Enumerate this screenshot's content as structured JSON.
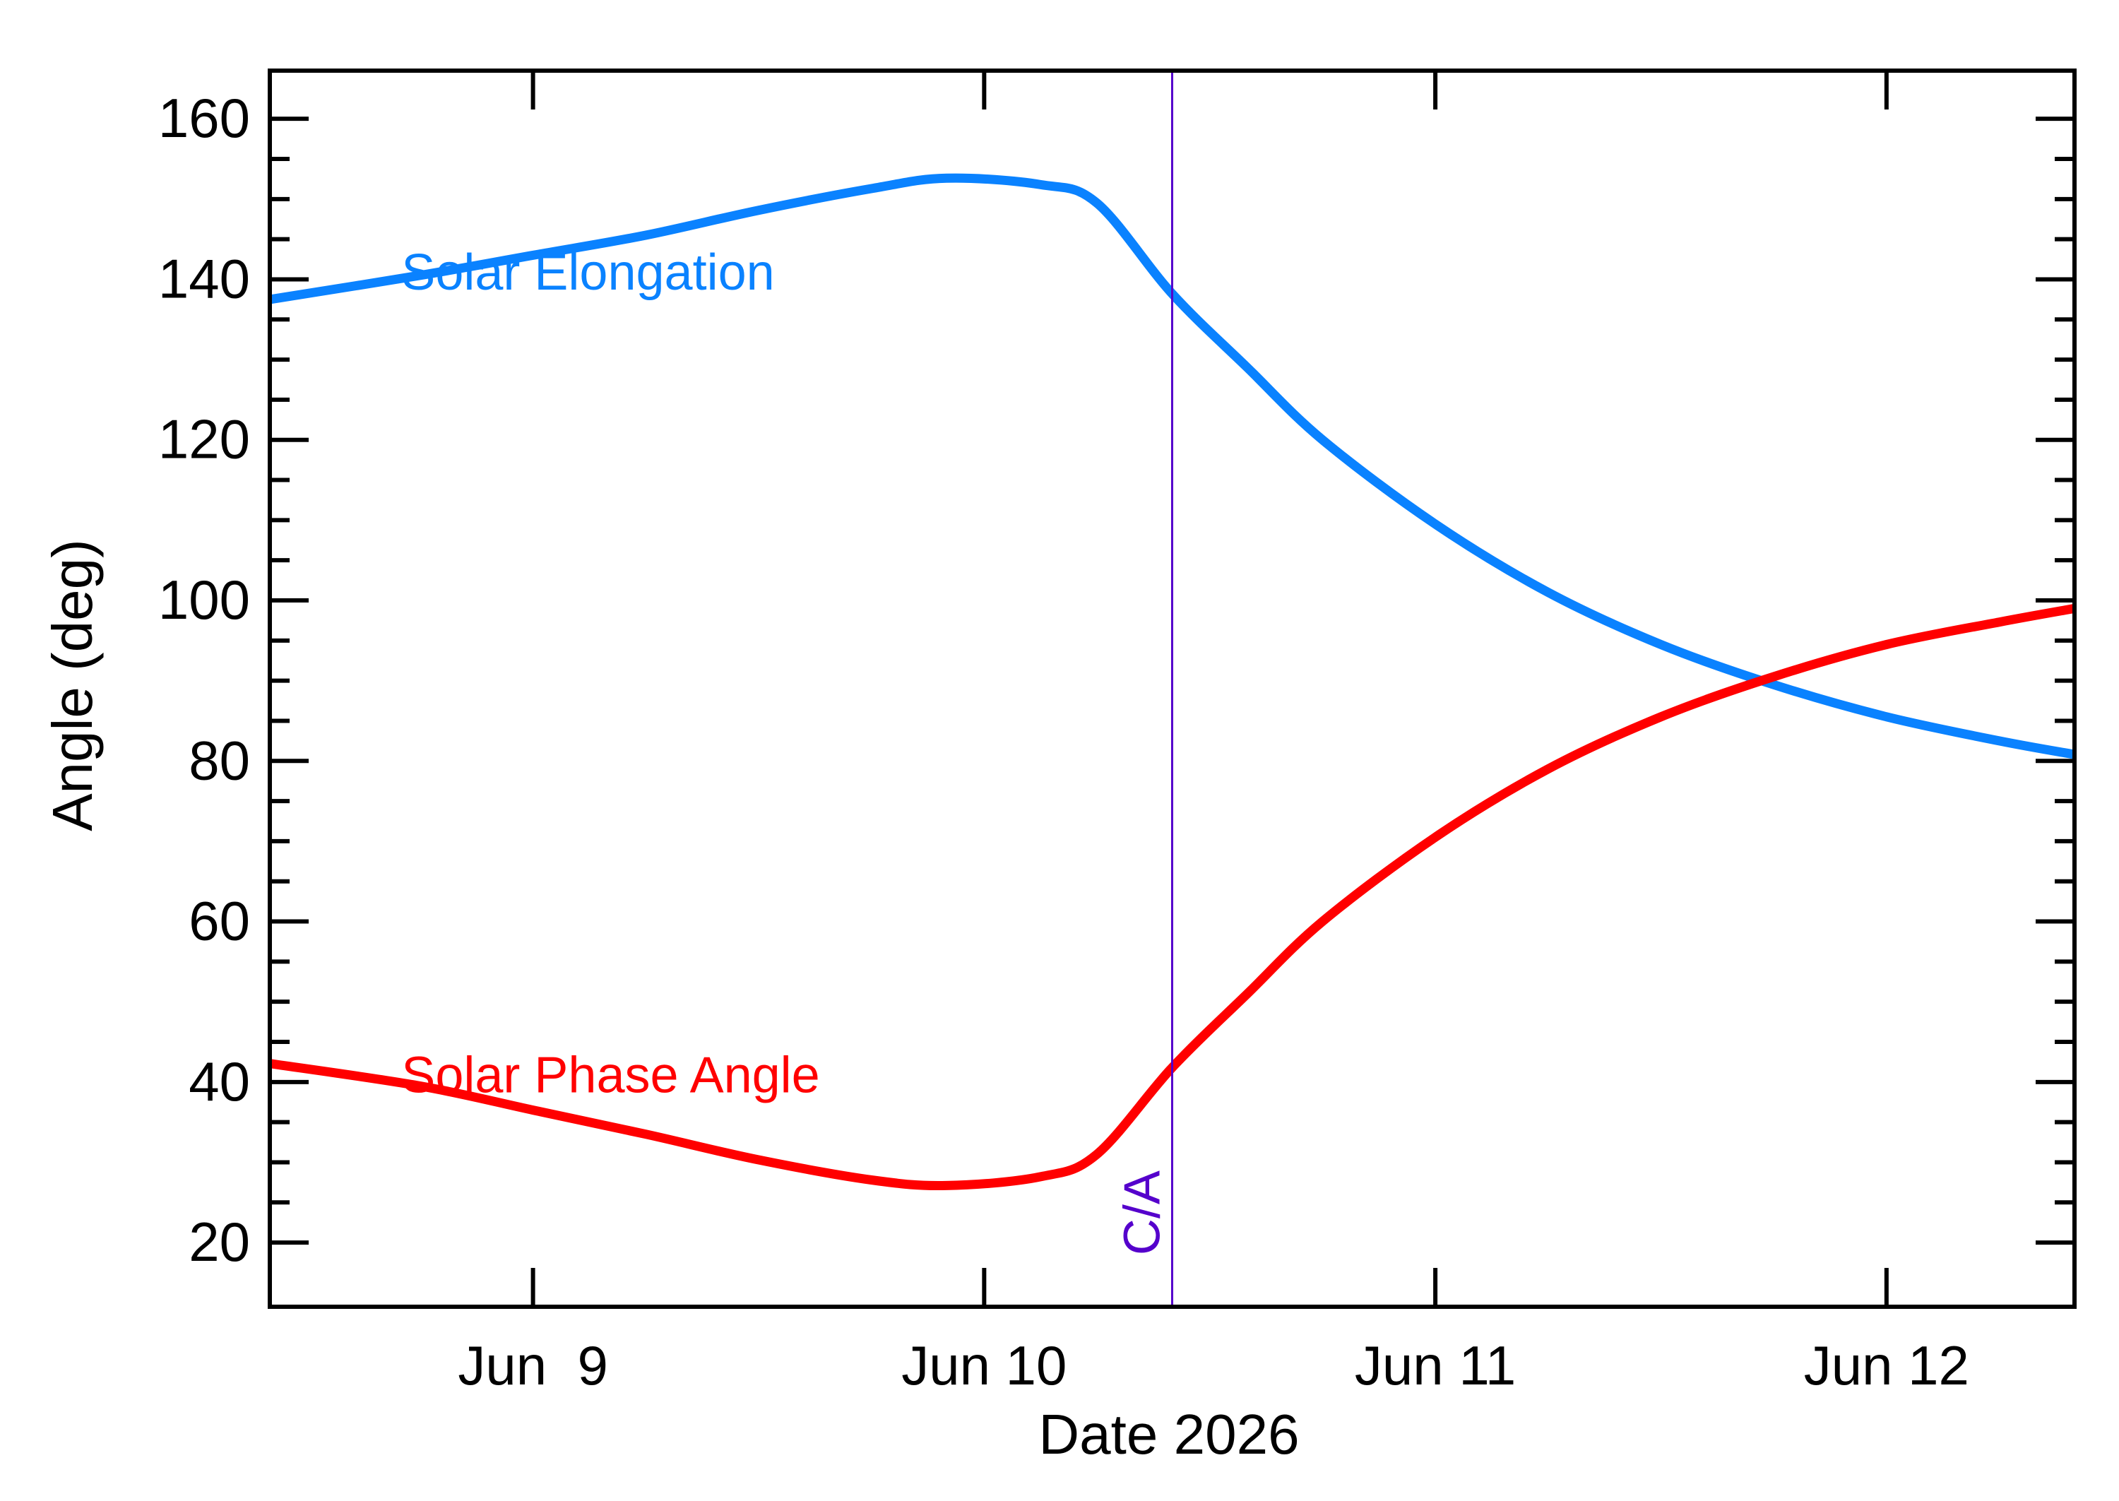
{
  "chart_data": {
    "type": "line",
    "xlabel": "Date 2026",
    "ylabel": "Angle (deg)",
    "xlim": [
      "2026-06-08T10:00",
      "2026-06-12T10:00"
    ],
    "ylim": [
      12,
      166
    ],
    "x_ticks": [
      {
        "date": "2026-06-09",
        "label": "Jun  9"
      },
      {
        "date": "2026-06-10",
        "label": "Jun 10"
      },
      {
        "date": "2026-06-11",
        "label": "Jun 11"
      },
      {
        "date": "2026-06-12",
        "label": "Jun 12"
      }
    ],
    "y_ticks": [
      20,
      40,
      60,
      80,
      100,
      120,
      140,
      160
    ],
    "grid": false,
    "series": [
      {
        "name": "Solar Elongation",
        "color": "#0a82ff",
        "points": [
          [
            "2026-06-08T10:00",
            137.5
          ],
          [
            "2026-06-08T18:00",
            140.5
          ],
          [
            "2026-06-09T00:00",
            143.0
          ],
          [
            "2026-06-09T06:00",
            145.5
          ],
          [
            "2026-06-09T12:00",
            148.6
          ],
          [
            "2026-06-09T18:00",
            151.3
          ],
          [
            "2026-06-09T22:00",
            152.6
          ],
          [
            "2026-06-10T03:00",
            151.8
          ],
          [
            "2026-06-10T06:00",
            149.5
          ],
          [
            "2026-06-10T10:00",
            138.2
          ],
          [
            "2026-06-10T14:00",
            129.0
          ],
          [
            "2026-06-10T18:00",
            120.0
          ],
          [
            "2026-06-11T00:00",
            109.5
          ],
          [
            "2026-06-11T06:00",
            101.0
          ],
          [
            "2026-06-11T12:00",
            94.5
          ],
          [
            "2026-06-11T18:00",
            89.5
          ],
          [
            "2026-06-12T00:00",
            85.5
          ],
          [
            "2026-06-12T06:00",
            82.5
          ],
          [
            "2026-06-12T10:00",
            80.8
          ]
        ]
      },
      {
        "name": "Solar Phase Angle",
        "color": "#ff0000",
        "points": [
          [
            "2026-06-08T10:00",
            42.3
          ],
          [
            "2026-06-08T18:00",
            39.5
          ],
          [
            "2026-06-09T00:00",
            36.5
          ],
          [
            "2026-06-09T06:00",
            33.5
          ],
          [
            "2026-06-09T12:00",
            30.3
          ],
          [
            "2026-06-09T18:00",
            27.8
          ],
          [
            "2026-06-09T22:00",
            27.1
          ],
          [
            "2026-06-10T03:00",
            28.2
          ],
          [
            "2026-06-10T06:00",
            31.0
          ],
          [
            "2026-06-10T10:00",
            41.8
          ],
          [
            "2026-06-10T14:00",
            51.0
          ],
          [
            "2026-06-10T18:00",
            60.0
          ],
          [
            "2026-06-11T00:00",
            70.5
          ],
          [
            "2026-06-11T06:00",
            79.0
          ],
          [
            "2026-06-11T12:00",
            85.5
          ],
          [
            "2026-06-11T18:00",
            90.5
          ],
          [
            "2026-06-12T00:00",
            94.5
          ],
          [
            "2026-06-12T06:00",
            97.3
          ],
          [
            "2026-06-12T10:00",
            99.0
          ]
        ]
      }
    ],
    "annotations": [
      {
        "text": "Solar Elongation",
        "color": "#0a82ff",
        "x": "2026-06-08T17:00",
        "y": 141
      },
      {
        "text": "Solar Phase Angle",
        "color": "#ff0000",
        "x": "2026-06-08T17:00",
        "y": 41
      }
    ],
    "vline": {
      "x": "2026-06-10T10:00",
      "label": "C/A",
      "color": "#5500cc"
    }
  }
}
